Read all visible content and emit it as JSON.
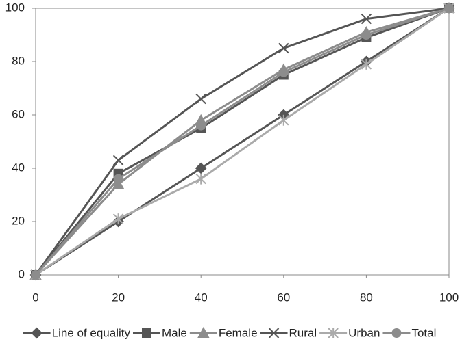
{
  "chart_data": {
    "type": "line",
    "x": [
      0,
      20,
      40,
      60,
      80,
      100
    ],
    "xlim": [
      0,
      100
    ],
    "xticks": [
      0,
      20,
      40,
      60,
      80,
      100
    ],
    "ylim": [
      0,
      100
    ],
    "yticks": [
      0,
      20,
      40,
      60,
      80,
      100
    ],
    "legend": "bottom",
    "series": [
      {
        "name": "Line of equality",
        "color": "#555555",
        "marker": "diamond",
        "values": [
          0,
          20,
          40,
          60,
          80,
          100
        ]
      },
      {
        "name": "Male",
        "color": "#555555",
        "marker": "square",
        "values": [
          0,
          38,
          55,
          75,
          89,
          100
        ]
      },
      {
        "name": "Female",
        "color": "#8c8c8c",
        "marker": "triangle",
        "values": [
          0,
          34,
          58,
          77,
          91,
          100
        ]
      },
      {
        "name": "Rural",
        "color": "#555555",
        "marker": "x",
        "values": [
          0,
          43,
          66,
          85,
          96,
          100
        ]
      },
      {
        "name": "Urban",
        "color": "#aaaaaa",
        "marker": "star",
        "values": [
          0,
          21,
          36,
          58,
          79,
          100
        ]
      },
      {
        "name": "Total",
        "color": "#8c8c8c",
        "marker": "circle",
        "values": [
          0,
          36,
          56,
          76,
          90,
          100
        ]
      }
    ]
  }
}
